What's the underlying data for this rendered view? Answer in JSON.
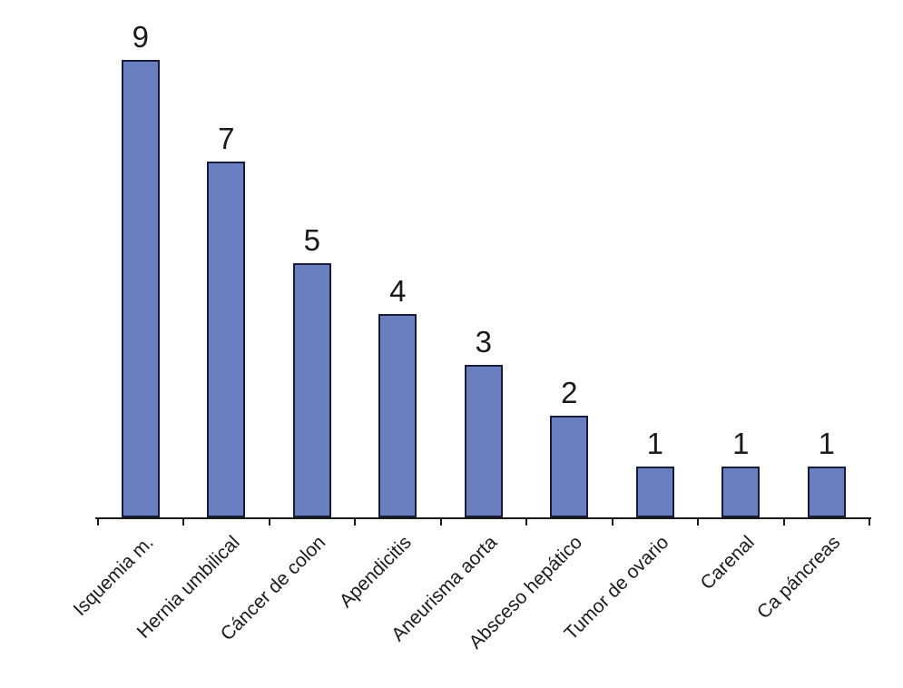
{
  "chart_data": {
    "type": "bar",
    "title": "",
    "xlabel": "",
    "ylabel": "",
    "categories": [
      "Isquemia m.",
      "Hernia umbilical",
      "Cáncer de colon",
      "Apendicitis",
      "Aneurisma aorta",
      "Absceso hepático",
      "Tumor de ovario",
      "Carenal",
      "Ca páncreas"
    ],
    "values": [
      9,
      7,
      5,
      4,
      3,
      2,
      1,
      1,
      1
    ],
    "ylim": [
      0,
      9
    ],
    "grid": false,
    "legend_position": "none",
    "value_labels_shown": true,
    "category_label_rotation_deg": 45,
    "colors": {
      "bar_fill": "#6A7FC0",
      "bar_border": "#161D38",
      "axis": "#1A1A1A",
      "text": "#1A1A1A",
      "background": "#FFFFFF"
    }
  }
}
